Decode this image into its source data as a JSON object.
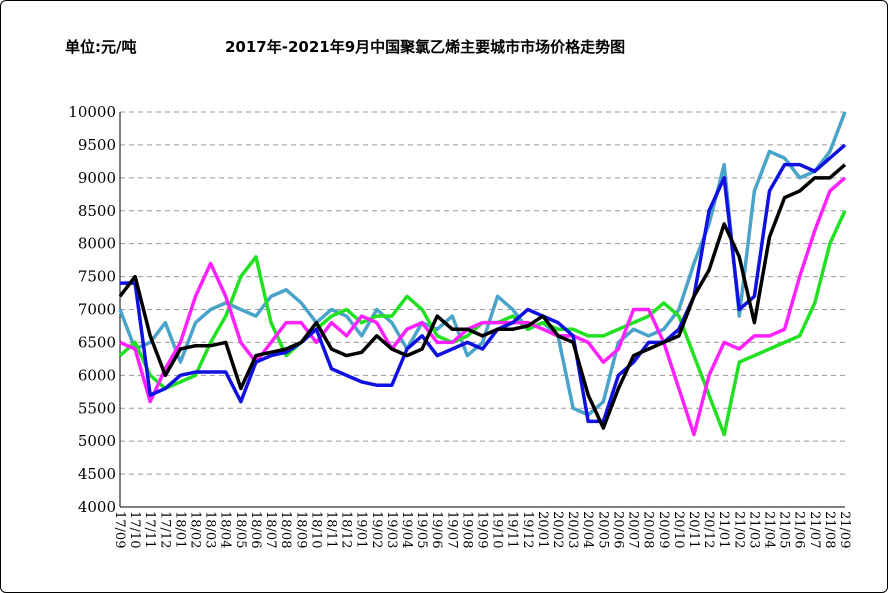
{
  "chart_data": {
    "type": "line",
    "title": "2017年-2021年9月中国聚氯乙烯主要城市市场价格走势图",
    "y_axis_label": "单位:元/吨",
    "categories": [
      "17/09",
      "17/10",
      "17/11",
      "17/12",
      "18/01",
      "18/02",
      "18/03",
      "18/04",
      "18/05",
      "18/06",
      "18/07",
      "18/08",
      "18/09",
      "18/10",
      "18/11",
      "18/12",
      "19/01",
      "19/02",
      "19/03",
      "19/04",
      "19/05",
      "19/06",
      "19/07",
      "19/08",
      "19/09",
      "19/10",
      "19/11",
      "19/12",
      "20/01",
      "20/02",
      "20/03",
      "20/04",
      "20/05",
      "20/06",
      "20/07",
      "20/08",
      "20/09",
      "20/10",
      "20/11",
      "20/12",
      "21/01",
      "21/02",
      "21/03",
      "21/04",
      "21/05",
      "21/06",
      "21/07",
      "21/08",
      "21/09"
    ],
    "ylim": [
      4000,
      10000
    ],
    "yticks": [
      4000,
      4500,
      5000,
      5500,
      6000,
      6500,
      7000,
      7500,
      8000,
      8500,
      9000,
      9500,
      10000
    ],
    "grid": true,
    "series": [
      {
        "color": "#4aa3c8",
        "values": [
          7000,
          6400,
          6500,
          6800,
          6200,
          6800,
          7000,
          7100,
          7000,
          6900,
          7200,
          7300,
          7100,
          6800,
          7000,
          6900,
          6600,
          7000,
          6800,
          6400,
          6800,
          6700,
          6900,
          6300,
          6500,
          7200,
          7000,
          6700,
          6800,
          6600,
          5500,
          5400,
          5600,
          6500,
          6700,
          6600,
          6700,
          7000,
          7700,
          8300,
          9200,
          6900,
          8800,
          9400,
          9300,
          9000,
          9100,
          9400,
          10000
        ]
      },
      {
        "color": "#22e022",
        "values": [
          6300,
          6500,
          6000,
          5800,
          5900,
          6000,
          6500,
          6900,
          7500,
          7800,
          6800,
          6300,
          6500,
          6700,
          6900,
          7000,
          6800,
          6900,
          6900,
          7200,
          7000,
          6600,
          6500,
          6600,
          6800,
          6800,
          6900,
          6700,
          6800,
          6700,
          6700,
          6600,
          6600,
          6700,
          6800,
          6900,
          7100,
          6900,
          6300,
          5700,
          5100,
          6200,
          6300,
          6400,
          6500,
          6600,
          7100,
          8000,
          8500
        ]
      },
      {
        "color": "#ff22ff",
        "values": [
          6500,
          6400,
          5600,
          6100,
          6500,
          7200,
          7700,
          7200,
          6500,
          6200,
          6500,
          6800,
          6800,
          6500,
          6800,
          6600,
          6900,
          6800,
          6400,
          6700,
          6800,
          6500,
          6500,
          6700,
          6800,
          6800,
          6800,
          6800,
          6700,
          6600,
          6600,
          6500,
          6200,
          6400,
          7000,
          7000,
          6500,
          5800,
          5100,
          6000,
          6500,
          6400,
          6600,
          6600,
          6700,
          7500,
          8200,
          8800,
          9000
        ]
      },
      {
        "color": "#1010e0",
        "values": [
          7400,
          7400,
          5700,
          5800,
          6000,
          6050,
          6050,
          6050,
          5600,
          6200,
          6300,
          6350,
          6500,
          6700,
          6100,
          6000,
          5900,
          5850,
          5850,
          6400,
          6600,
          6300,
          6400,
          6500,
          6400,
          6700,
          6800,
          7000,
          6900,
          6800,
          6600,
          5300,
          5300,
          6000,
          6200,
          6500,
          6500,
          6700,
          7200,
          8500,
          9000,
          7000,
          7200,
          8800,
          9200,
          9200,
          9100,
          9300,
          9500
        ]
      },
      {
        "color": "#000000",
        "values": [
          7200,
          7500,
          6600,
          6000,
          6400,
          6450,
          6450,
          6500,
          5800,
          6300,
          6350,
          6400,
          6500,
          6800,
          6400,
          6300,
          6350,
          6600,
          6400,
          6300,
          6400,
          6900,
          6700,
          6700,
          6600,
          6700,
          6700,
          6750,
          6900,
          6600,
          6500,
          5700,
          5200,
          5800,
          6300,
          6400,
          6500,
          6600,
          7200,
          7600,
          8300,
          7800,
          6800,
          8100,
          8700,
          8800,
          9000,
          9000,
          9200
        ]
      }
    ]
  }
}
